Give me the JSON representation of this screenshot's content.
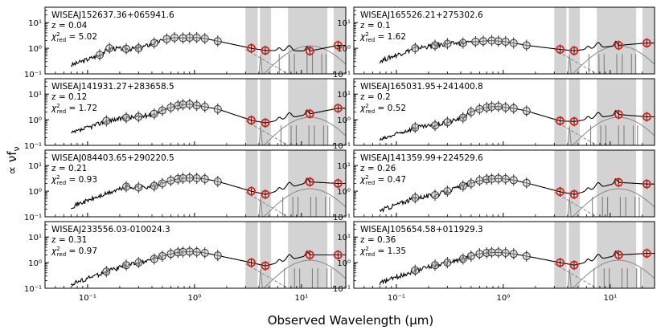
{
  "figure": {
    "ylabel": "∝ νf",
    "ylabel_sub": "ν",
    "xlabel": "Observed Wavelength (μm)"
  },
  "chart_data": [
    {
      "type": "line",
      "name": "WISEAJ152637.36+065941.6",
      "z": "z = 0.04",
      "chi": "5.02",
      "x_ticks": [
        "10⁻¹",
        "10⁰",
        "10¹"
      ],
      "y_ticks": [
        "10¹",
        "10⁰",
        "10⁻¹"
      ],
      "xlim": [
        0.04,
        26
      ],
      "ylim": [
        0.1,
        40
      ],
      "log_x": true,
      "log_y": true,
      "open_points": [
        [
          0.13,
          0.55
        ],
        [
          0.16,
          1.0
        ],
        [
          0.23,
          0.95
        ],
        [
          0.3,
          1.0
        ],
        [
          0.42,
          1.6
        ],
        [
          0.55,
          2.3
        ],
        [
          0.65,
          2.6
        ],
        [
          0.78,
          2.5
        ],
        [
          0.9,
          2.6
        ],
        [
          1.05,
          2.6
        ],
        [
          1.25,
          2.4
        ],
        [
          1.65,
          1.9
        ]
      ],
      "red_points": [
        [
          3.4,
          1.0
        ],
        [
          4.6,
          0.82
        ],
        [
          12,
          0.78
        ],
        [
          22,
          1.3
        ]
      ]
    },
    {
      "type": "line",
      "name": "WISEAJ165526.21+275302.6",
      "z": "z = 0.1",
      "chi": "1.62",
      "x_ticks": [
        "10⁻¹",
        "10⁰",
        "10¹"
      ],
      "y_ticks": [
        "10¹",
        "10⁰",
        "10⁻¹"
      ],
      "xlim": [
        0.04,
        26
      ],
      "ylim": [
        0.1,
        40
      ],
      "log_x": true,
      "log_y": true,
      "open_points": [
        [
          0.15,
          1.0
        ],
        [
          0.23,
          1.3
        ],
        [
          0.3,
          1.5
        ],
        [
          0.42,
          1.6
        ],
        [
          0.55,
          1.8
        ],
        [
          0.65,
          1.9
        ],
        [
          0.78,
          2.0
        ],
        [
          0.9,
          1.9
        ],
        [
          1.05,
          1.8
        ],
        [
          1.25,
          1.6
        ],
        [
          1.65,
          1.3
        ]
      ],
      "red_points": [
        [
          3.4,
          0.9
        ],
        [
          4.6,
          0.8
        ],
        [
          12,
          1.3
        ],
        [
          22,
          1.6
        ]
      ]
    },
    {
      "type": "line",
      "name": "WISEAJ141931.27+283658.5",
      "z": "z = 0.12",
      "chi": "1.72",
      "x_ticks": [
        "10⁻¹",
        "10⁰",
        "10¹"
      ],
      "y_ticks": [
        "10¹",
        "10⁰",
        "10⁻¹"
      ],
      "xlim": [
        0.04,
        26
      ],
      "ylim": [
        0.1,
        40
      ],
      "log_x": true,
      "log_y": true,
      "open_points": [
        [
          0.15,
          0.9
        ],
        [
          0.23,
          1.2
        ],
        [
          0.3,
          1.3
        ],
        [
          0.42,
          1.7
        ],
        [
          0.5,
          2.3
        ],
        [
          0.6,
          3.0
        ],
        [
          0.7,
          3.6
        ],
        [
          0.78,
          3.9
        ],
        [
          0.9,
          4.0
        ],
        [
          1.05,
          3.6
        ],
        [
          1.25,
          3.2
        ],
        [
          1.65,
          2.6
        ]
      ],
      "red_points": [
        [
          3.4,
          0.95
        ],
        [
          4.6,
          0.75
        ],
        [
          12,
          1.7
        ],
        [
          22,
          2.8
        ]
      ]
    },
    {
      "type": "line",
      "name": "WISEAJ165031.95+241400.8",
      "z": "z = 0.2",
      "chi": "0.52",
      "x_ticks": [
        "10⁻¹",
        "10⁰",
        "10¹"
      ],
      "y_ticks": [
        "10¹",
        "10⁰",
        "10⁻¹"
      ],
      "xlim": [
        0.04,
        26
      ],
      "ylim": [
        0.1,
        40
      ],
      "log_x": true,
      "log_y": true,
      "open_points": [
        [
          0.15,
          0.5
        ],
        [
          0.23,
          0.6
        ],
        [
          0.3,
          0.8
        ],
        [
          0.42,
          1.2
        ],
        [
          0.5,
          2.0
        ],
        [
          0.6,
          2.6
        ],
        [
          0.7,
          3.0
        ],
        [
          0.78,
          3.2
        ],
        [
          0.9,
          3.3
        ],
        [
          1.05,
          3.0
        ],
        [
          1.25,
          2.8
        ],
        [
          1.65,
          2.2
        ]
      ],
      "red_points": [
        [
          3.4,
          0.9
        ],
        [
          4.6,
          0.85
        ],
        [
          12,
          1.6
        ],
        [
          22,
          1.3
        ]
      ]
    },
    {
      "type": "line",
      "name": "WISEAJ084403.65+290220.5",
      "z": "z = 0.21",
      "chi": "0.93",
      "x_ticks": [
        "10⁻¹",
        "10⁰",
        "10¹"
      ],
      "y_ticks": [
        "10¹",
        "10⁰",
        "10⁻¹"
      ],
      "xlim": [
        0.04,
        26
      ],
      "ylim": [
        0.1,
        40
      ],
      "log_x": true,
      "log_y": true,
      "open_points": [
        [
          0.23,
          1.5
        ],
        [
          0.3,
          1.4
        ],
        [
          0.42,
          1.6
        ],
        [
          0.5,
          2.0
        ],
        [
          0.6,
          2.6
        ],
        [
          0.7,
          3.0
        ],
        [
          0.78,
          3.2
        ],
        [
          0.9,
          3.3
        ],
        [
          1.05,
          3.2
        ],
        [
          1.25,
          3.0
        ],
        [
          1.65,
          2.4
        ]
      ],
      "red_points": [
        [
          3.4,
          1.0
        ],
        [
          4.6,
          0.75
        ],
        [
          12,
          2.3
        ],
        [
          22,
          2.0
        ]
      ]
    },
    {
      "type": "line",
      "name": "WISEAJ141359.99+224529.6",
      "z": "z = 0.26",
      "chi": "0.47",
      "x_ticks": [
        "10⁻¹",
        "10⁰",
        "10¹"
      ],
      "y_ticks": [
        "10¹",
        "10⁰",
        "10⁻¹"
      ],
      "xlim": [
        0.04,
        26
      ],
      "ylim": [
        0.1,
        40
      ],
      "log_x": true,
      "log_y": true,
      "open_points": [
        [
          0.15,
          0.55
        ],
        [
          0.23,
          0.7
        ],
        [
          0.3,
          1.0
        ],
        [
          0.42,
          1.6
        ],
        [
          0.5,
          2.0
        ],
        [
          0.6,
          2.6
        ],
        [
          0.7,
          2.9
        ],
        [
          0.78,
          3.0
        ],
        [
          0.9,
          3.1
        ],
        [
          1.05,
          3.0
        ],
        [
          1.25,
          2.7
        ],
        [
          1.65,
          2.1
        ]
      ],
      "red_points": [
        [
          3.4,
          0.95
        ],
        [
          4.6,
          0.75
        ],
        [
          12,
          2.2
        ],
        [
          22,
          1.9
        ]
      ]
    },
    {
      "type": "line",
      "name": "WISEAJ233556.03-010024.3",
      "z": "z = 0.31",
      "chi": "0.97",
      "x_ticks": [
        "10⁻¹",
        "10⁰",
        "10¹"
      ],
      "y_ticks": [
        "10¹",
        "10⁰",
        "10⁻¹"
      ],
      "xlim": [
        0.04,
        26
      ],
      "ylim": [
        0.1,
        40
      ],
      "log_x": true,
      "log_y": true,
      "open_points": [
        [
          0.15,
          0.45
        ],
        [
          0.23,
          0.8
        ],
        [
          0.3,
          1.0
        ],
        [
          0.42,
          1.4
        ],
        [
          0.5,
          1.8
        ],
        [
          0.6,
          2.2
        ],
        [
          0.7,
          2.5
        ],
        [
          0.78,
          2.6
        ],
        [
          0.9,
          2.7
        ],
        [
          1.05,
          2.6
        ],
        [
          1.25,
          2.4
        ],
        [
          1.65,
          1.9
        ]
      ],
      "red_points": [
        [
          3.4,
          1.0
        ],
        [
          4.6,
          0.75
        ],
        [
          12,
          2.0
        ],
        [
          22,
          2.0
        ]
      ]
    },
    {
      "type": "line",
      "name": "WISEAJ105654.58+011929.3",
      "z": "z = 0.36",
      "chi": "1.35",
      "x_ticks": [
        "10⁻¹",
        "10⁰",
        "10¹"
      ],
      "y_ticks": [
        "10¹",
        "10⁰",
        "10⁻¹"
      ],
      "xlim": [
        0.04,
        26
      ],
      "ylim": [
        0.1,
        40
      ],
      "log_x": true,
      "log_y": true,
      "open_points": [
        [
          0.15,
          0.5
        ],
        [
          0.23,
          0.8
        ],
        [
          0.3,
          1.0
        ],
        [
          0.42,
          1.4
        ],
        [
          0.5,
          1.8
        ],
        [
          0.6,
          2.2
        ],
        [
          0.7,
          2.4
        ],
        [
          0.78,
          2.5
        ],
        [
          0.9,
          2.5
        ],
        [
          1.05,
          2.4
        ],
        [
          1.25,
          2.2
        ],
        [
          1.65,
          1.8
        ]
      ],
      "red_points": [
        [
          3.4,
          1.0
        ],
        [
          4.6,
          0.8
        ],
        [
          12,
          2.0
        ],
        [
          22,
          2.3
        ]
      ]
    }
  ]
}
